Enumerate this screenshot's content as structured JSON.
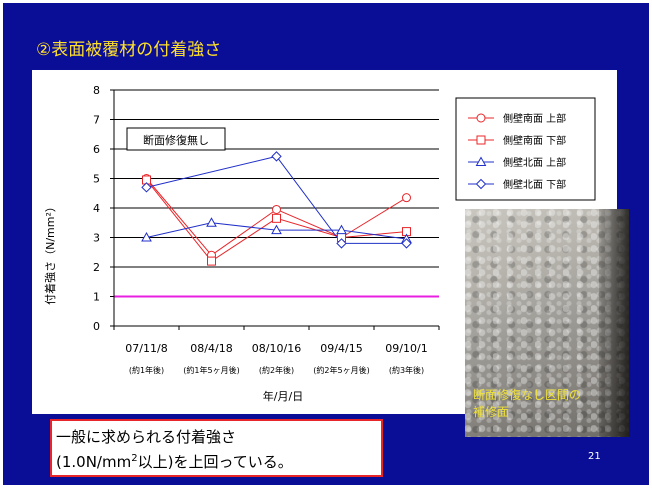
{
  "slide": {
    "title": "②表面被覆材の付着強さ",
    "page_number": "21"
  },
  "photo": {
    "caption_line1": "断面修復なし区間の",
    "caption_line2": "補修面"
  },
  "note": {
    "line1": "一般に求められる付着強さ",
    "line2_prefix": "(1.0N/mm",
    "line2_sup": "2",
    "line2_suffix": "以上)を上回っている。"
  },
  "chart_data": {
    "type": "line",
    "title": "",
    "annotation": "断面修復無し",
    "ylabel": "付着強さ（N/mm²）",
    "xlabel": "年/月/日",
    "ylim": [
      0,
      8
    ],
    "yticks": [
      0,
      1,
      2,
      3,
      4,
      5,
      6,
      7,
      8
    ],
    "categories": [
      "07/11/8",
      "08/4/18",
      "08/10/16",
      "09/4/15",
      "09/10/1"
    ],
    "category_sublabels": [
      "(約1年後)",
      "(約1年5ヶ月後)",
      "(約2年後)",
      "(約2年5ヶ月後)",
      "(約3年後)"
    ],
    "reference_line": {
      "value": 1.0,
      "color": "#e81ee0"
    },
    "grid": "horizontal",
    "legend_position": "right",
    "series": [
      {
        "name": "側壁南面 上部",
        "marker": "circle",
        "color": "#e8262a",
        "values": [
          5.0,
          2.4,
          3.95,
          3.0,
          4.35
        ]
      },
      {
        "name": "側壁南面 下部",
        "marker": "square",
        "color": "#e8262a",
        "values": [
          4.95,
          2.2,
          3.65,
          3.0,
          3.2
        ]
      },
      {
        "name": "側壁北面 上部",
        "marker": "triangle",
        "color": "#2030c8",
        "values": [
          3.0,
          3.5,
          3.25,
          3.25,
          2.95
        ]
      },
      {
        "name": "側壁北面 下部",
        "marker": "diamond",
        "color": "#2030c8",
        "values": [
          4.7,
          null,
          5.75,
          2.8,
          2.8
        ]
      }
    ]
  }
}
